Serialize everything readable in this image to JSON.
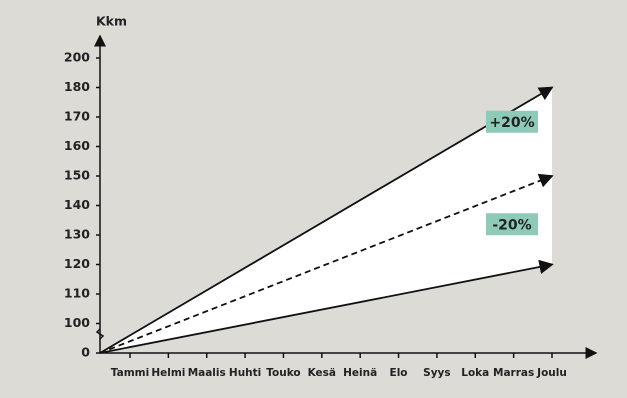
{
  "chart_data": {
    "type": "line",
    "y_label": "Kkm",
    "categories": [
      "Tammi",
      "Helmi",
      "Maalis",
      "Huhti",
      "Touko",
      "Kesä",
      "Heinä",
      "Elo",
      "Syys",
      "Loka",
      "Marras",
      "Joulu"
    ],
    "series": [
      {
        "color": "#111111",
        "dashed": false,
        "values": [
          null,
          null,
          null,
          null,
          null,
          null,
          null,
          null,
          null,
          null,
          null,
          180
        ]
      },
      {
        "color": "#111111",
        "dashed": true,
        "values": [
          null,
          null,
          null,
          null,
          null,
          null,
          null,
          null,
          null,
          null,
          null,
          150
        ]
      },
      {
        "color": "#111111",
        "dashed": false,
        "values": [
          null,
          null,
          null,
          null,
          null,
          null,
          null,
          null,
          null,
          null,
          null,
          120
        ]
      }
    ],
    "band_fill": "#ffffff",
    "annotations": [
      {
        "text": "+20%",
        "color": "#8ecab8"
      },
      {
        "text": "-20%",
        "color": "#8ecab8"
      }
    ],
    "yticks": [
      0,
      100,
      110,
      120,
      130,
      140,
      150,
      160,
      170,
      180,
      200
    ]
  }
}
